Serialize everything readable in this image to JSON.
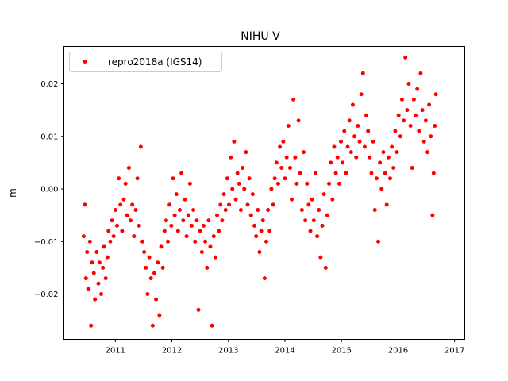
{
  "chart_data": {
    "type": "scatter",
    "title": "NIHU V",
    "xlabel": "",
    "ylabel": "m",
    "xlim": [
      2010.09,
      2017.18
    ],
    "ylim": [
      -0.0286,
      0.0271
    ],
    "xticks": [
      2011,
      2012,
      2013,
      2014,
      2015,
      2016,
      2017
    ],
    "xtick_labels": [
      "2011",
      "2012",
      "2013",
      "2014",
      "2015",
      "2016",
      "2017"
    ],
    "yticks": [
      -0.02,
      -0.01,
      0.0,
      0.01,
      0.02
    ],
    "ytick_labels": [
      "−0.02",
      "−0.01",
      "0.00",
      "0.01",
      "0.02"
    ],
    "grid": false,
    "legend": {
      "placement": "top-left",
      "entries": [
        "repro2018a (IGS14)"
      ]
    },
    "series": [
      {
        "name": "repro2018a (IGS14)",
        "color": "#ff0000",
        "marker": "circle",
        "points": [
          [
            2010.44,
            -0.009
          ],
          [
            2010.46,
            -0.003
          ],
          [
            2010.48,
            -0.017
          ],
          [
            2010.5,
            -0.012
          ],
          [
            2010.52,
            -0.019
          ],
          [
            2010.55,
            -0.01
          ],
          [
            2010.57,
            -0.026
          ],
          [
            2010.59,
            -0.014
          ],
          [
            2010.62,
            -0.016
          ],
          [
            2010.64,
            -0.021
          ],
          [
            2010.67,
            -0.012
          ],
          [
            2010.7,
            -0.018
          ],
          [
            2010.72,
            -0.014
          ],
          [
            2010.75,
            -0.02
          ],
          [
            2010.78,
            -0.015
          ],
          [
            2010.8,
            -0.011
          ],
          [
            2010.83,
            -0.017
          ],
          [
            2010.86,
            -0.013
          ],
          [
            2010.88,
            -0.008
          ],
          [
            2010.91,
            -0.01
          ],
          [
            2010.94,
            -0.006
          ],
          [
            2010.97,
            -0.009
          ],
          [
            2011.0,
            -0.004
          ],
          [
            2011.03,
            -0.007
          ],
          [
            2011.06,
            0.002
          ],
          [
            2011.09,
            -0.003
          ],
          [
            2011.12,
            -0.008
          ],
          [
            2011.15,
            -0.002
          ],
          [
            2011.18,
            0.001
          ],
          [
            2011.21,
            -0.005
          ],
          [
            2011.24,
            0.004
          ],
          [
            2011.27,
            -0.006
          ],
          [
            2011.3,
            -0.003
          ],
          [
            2011.33,
            -0.009
          ],
          [
            2011.36,
            -0.004
          ],
          [
            2011.39,
            0.002
          ],
          [
            2011.42,
            -0.007
          ],
          [
            2011.45,
            0.008
          ],
          [
            2011.48,
            -0.01
          ],
          [
            2011.51,
            -0.012
          ],
          [
            2011.54,
            -0.015
          ],
          [
            2011.57,
            -0.02
          ],
          [
            2011.6,
            -0.013
          ],
          [
            2011.63,
            -0.017
          ],
          [
            2011.66,
            -0.026
          ],
          [
            2011.69,
            -0.016
          ],
          [
            2011.72,
            -0.021
          ],
          [
            2011.75,
            -0.014
          ],
          [
            2011.78,
            -0.024
          ],
          [
            2011.81,
            -0.011
          ],
          [
            2011.84,
            -0.015
          ],
          [
            2011.87,
            -0.008
          ],
          [
            2011.9,
            -0.006
          ],
          [
            2011.93,
            -0.01
          ],
          [
            2011.96,
            -0.003
          ],
          [
            2011.99,
            -0.007
          ],
          [
            2012.02,
            0.002
          ],
          [
            2012.05,
            -0.005
          ],
          [
            2012.08,
            -0.001
          ],
          [
            2012.11,
            -0.008
          ],
          [
            2012.14,
            -0.004
          ],
          [
            2012.17,
            0.003
          ],
          [
            2012.2,
            -0.006
          ],
          [
            2012.23,
            -0.002
          ],
          [
            2012.26,
            -0.009
          ],
          [
            2012.29,
            -0.005
          ],
          [
            2012.32,
            0.001
          ],
          [
            2012.35,
            -0.007
          ],
          [
            2012.38,
            -0.004
          ],
          [
            2012.41,
            -0.01
          ],
          [
            2012.44,
            -0.006
          ],
          [
            2012.47,
            -0.023
          ],
          [
            2012.5,
            -0.008
          ],
          [
            2012.53,
            -0.012
          ],
          [
            2012.56,
            -0.007
          ],
          [
            2012.59,
            -0.01
          ],
          [
            2012.62,
            -0.015
          ],
          [
            2012.65,
            -0.006
          ],
          [
            2012.68,
            -0.011
          ],
          [
            2012.71,
            -0.026
          ],
          [
            2012.74,
            -0.009
          ],
          [
            2012.77,
            -0.013
          ],
          [
            2012.8,
            -0.005
          ],
          [
            2012.83,
            -0.008
          ],
          [
            2012.86,
            -0.003
          ],
          [
            2012.89,
            -0.006
          ],
          [
            2012.92,
            -0.001
          ],
          [
            2012.95,
            -0.004
          ],
          [
            2012.98,
            0.002
          ],
          [
            2013.01,
            -0.003
          ],
          [
            2013.04,
            0.006
          ],
          [
            2013.07,
            0.0
          ],
          [
            2013.1,
            0.009
          ],
          [
            2013.13,
            -0.002
          ],
          [
            2013.16,
            0.003
          ],
          [
            2013.19,
            0.001
          ],
          [
            2013.22,
            -0.004
          ],
          [
            2013.25,
            0.004
          ],
          [
            2013.28,
            0.0
          ],
          [
            2013.31,
            0.007
          ],
          [
            2013.34,
            -0.003
          ],
          [
            2013.37,
            0.002
          ],
          [
            2013.4,
            -0.005
          ],
          [
            2013.43,
            -0.001
          ],
          [
            2013.46,
            -0.007
          ],
          [
            2013.49,
            -0.009
          ],
          [
            2013.52,
            -0.004
          ],
          [
            2013.55,
            -0.012
          ],
          [
            2013.58,
            -0.008
          ],
          [
            2013.61,
            -0.006
          ],
          [
            2013.64,
            -0.017
          ],
          [
            2013.67,
            -0.01
          ],
          [
            2013.7,
            -0.004
          ],
          [
            2013.73,
            -0.008
          ],
          [
            2013.76,
            0.0
          ],
          [
            2013.79,
            -0.003
          ],
          [
            2013.82,
            0.002
          ],
          [
            2013.85,
            0.005
          ],
          [
            2013.88,
            0.001
          ],
          [
            2013.91,
            0.008
          ],
          [
            2013.94,
            0.004
          ],
          [
            2013.97,
            0.009
          ],
          [
            2014.0,
            0.002
          ],
          [
            2014.03,
            0.006
          ],
          [
            2014.06,
            0.012
          ],
          [
            2014.09,
            0.004
          ],
          [
            2014.12,
            -0.002
          ],
          [
            2014.15,
            0.017
          ],
          [
            2014.18,
            0.006
          ],
          [
            2014.21,
            0.001
          ],
          [
            2014.24,
            0.013
          ],
          [
            2014.27,
            0.003
          ],
          [
            2014.3,
            -0.004
          ],
          [
            2014.33,
            0.007
          ],
          [
            2014.36,
            -0.006
          ],
          [
            2014.39,
            0.001
          ],
          [
            2014.42,
            -0.003
          ],
          [
            2014.45,
            -0.008
          ],
          [
            2014.48,
            -0.002
          ],
          [
            2014.51,
            -0.006
          ],
          [
            2014.54,
            0.003
          ],
          [
            2014.57,
            -0.009
          ],
          [
            2014.6,
            -0.004
          ],
          [
            2014.63,
            -0.013
          ],
          [
            2014.66,
            -0.007
          ],
          [
            2014.69,
            -0.001
          ],
          [
            2014.72,
            -0.015
          ],
          [
            2014.75,
            -0.005
          ],
          [
            2014.78,
            0.001
          ],
          [
            2014.81,
            0.005
          ],
          [
            2014.84,
            -0.002
          ],
          [
            2014.87,
            0.008
          ],
          [
            2014.9,
            0.003
          ],
          [
            2014.93,
            0.006
          ],
          [
            2014.96,
            0.001
          ],
          [
            2014.99,
            0.009
          ],
          [
            2015.02,
            0.005
          ],
          [
            2015.05,
            0.011
          ],
          [
            2015.08,
            0.003
          ],
          [
            2015.11,
            0.008
          ],
          [
            2015.14,
            0.013
          ],
          [
            2015.17,
            0.007
          ],
          [
            2015.2,
            0.016
          ],
          [
            2015.23,
            0.01
          ],
          [
            2015.26,
            0.006
          ],
          [
            2015.29,
            0.012
          ],
          [
            2015.32,
            0.009
          ],
          [
            2015.35,
            0.018
          ],
          [
            2015.38,
            0.022
          ],
          [
            2015.41,
            0.008
          ],
          [
            2015.44,
            0.014
          ],
          [
            2015.47,
            0.011
          ],
          [
            2015.5,
            0.006
          ],
          [
            2015.53,
            0.003
          ],
          [
            2015.56,
            0.009
          ],
          [
            2015.59,
            -0.004
          ],
          [
            2015.62,
            0.002
          ],
          [
            2015.65,
            -0.01
          ],
          [
            2015.68,
            0.005
          ],
          [
            2015.71,
            0.0
          ],
          [
            2015.74,
            0.007
          ],
          [
            2015.77,
            0.003
          ],
          [
            2015.8,
            -0.003
          ],
          [
            2015.83,
            0.006
          ],
          [
            2015.86,
            0.002
          ],
          [
            2015.89,
            0.008
          ],
          [
            2015.92,
            0.004
          ],
          [
            2015.95,
            0.011
          ],
          [
            2015.98,
            0.007
          ],
          [
            2016.01,
            0.014
          ],
          [
            2016.04,
            0.01
          ],
          [
            2016.07,
            0.017
          ],
          [
            2016.1,
            0.013
          ],
          [
            2016.13,
            0.025
          ],
          [
            2016.16,
            0.015
          ],
          [
            2016.19,
            0.02
          ],
          [
            2016.22,
            0.012
          ],
          [
            2016.25,
            0.004
          ],
          [
            2016.28,
            0.017
          ],
          [
            2016.31,
            0.014
          ],
          [
            2016.34,
            0.019
          ],
          [
            2016.37,
            0.011
          ],
          [
            2016.4,
            0.022
          ],
          [
            2016.43,
            0.015
          ],
          [
            2016.46,
            0.009
          ],
          [
            2016.49,
            0.013
          ],
          [
            2016.52,
            0.007
          ],
          [
            2016.55,
            0.016
          ],
          [
            2016.58,
            0.01
          ],
          [
            2016.61,
            -0.005
          ],
          [
            2016.63,
            0.003
          ],
          [
            2016.65,
            0.012
          ],
          [
            2016.67,
            0.018
          ]
        ]
      }
    ]
  }
}
